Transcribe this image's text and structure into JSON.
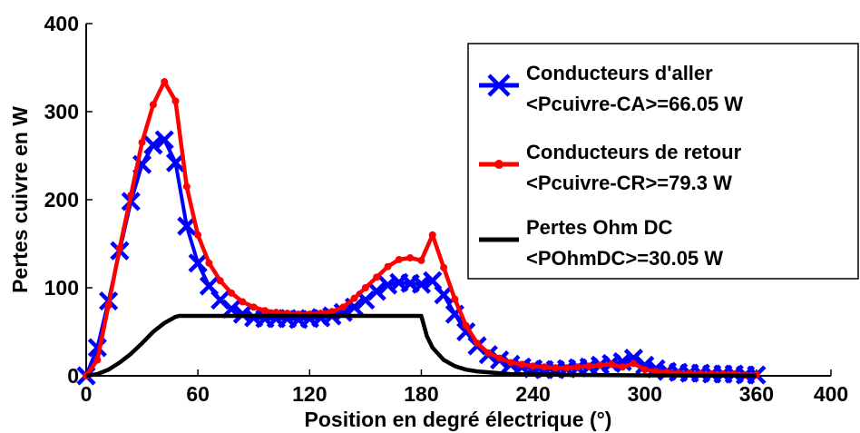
{
  "chart_data": {
    "type": "line",
    "title": "",
    "xlabel": "Position en degré électrique (°)",
    "ylabel": "Pertes cuivre en W",
    "xlim": [
      0,
      400
    ],
    "ylim": [
      0,
      400
    ],
    "xticks": [
      "0",
      "60",
      "120",
      "180",
      "240",
      "300",
      "360",
      "400"
    ],
    "yticks": [
      "0",
      "100",
      "200",
      "300",
      "400"
    ],
    "grid": false,
    "legend_position": "top-right",
    "series": [
      {
        "name": "Conducteurs d'aller",
        "sub": "<Pcuivre-CA>=66.05 W",
        "color": "#0000ff",
        "marker": "x",
        "x": [
          0,
          6,
          12,
          18,
          24,
          30,
          36,
          42,
          48,
          54,
          60,
          66,
          72,
          78,
          84,
          90,
          96,
          102,
          108,
          114,
          120,
          126,
          132,
          138,
          144,
          150,
          156,
          162,
          168,
          174,
          180,
          186,
          192,
          198,
          204,
          210,
          216,
          222,
          228,
          234,
          240,
          246,
          252,
          258,
          264,
          270,
          276,
          282,
          288,
          294,
          300,
          306,
          312,
          318,
          324,
          330,
          336,
          342,
          348,
          354,
          360
        ],
        "y": [
          0,
          32,
          85,
          142,
          198,
          240,
          262,
          268,
          242,
          170,
          128,
          102,
          86,
          76,
          70,
          66,
          65,
          65,
          65,
          64,
          65,
          66,
          68,
          72,
          78,
          86,
          96,
          103,
          106,
          105,
          104,
          108,
          92,
          70,
          50,
          34,
          24,
          18,
          13,
          10,
          8,
          7,
          7,
          8,
          9,
          10,
          12,
          14,
          16,
          20,
          12,
          8,
          5,
          4,
          3,
          3,
          2,
          2,
          2,
          1,
          1
        ]
      },
      {
        "name": "Conducteurs de retour",
        "sub": "<Pcuivre-CR>=79.3 W",
        "color": "#ff0000",
        "marker": "dot",
        "x": [
          0,
          6,
          12,
          18,
          24,
          30,
          36,
          42,
          48,
          54,
          60,
          66,
          72,
          78,
          84,
          90,
          96,
          102,
          108,
          114,
          120,
          126,
          132,
          138,
          144,
          150,
          156,
          162,
          168,
          174,
          180,
          186,
          192,
          198,
          204,
          210,
          216,
          222,
          228,
          234,
          240,
          246,
          252,
          258,
          264,
          270,
          276,
          282,
          288,
          294,
          300,
          306,
          312,
          318,
          324,
          330,
          336,
          342,
          348,
          354,
          360
        ],
        "y": [
          0,
          18,
          80,
          145,
          205,
          265,
          308,
          334,
          312,
          215,
          160,
          128,
          108,
          94,
          84,
          78,
          74,
          72,
          71,
          70,
          70,
          71,
          73,
          78,
          88,
          100,
          112,
          124,
          132,
          134,
          131,
          160,
          123,
          87,
          57,
          37,
          26,
          20,
          15,
          13,
          11,
          10,
          9,
          9,
          10,
          11,
          12,
          13,
          10,
          14,
          7,
          5,
          4,
          3,
          3,
          2,
          2,
          2,
          2,
          1,
          1
        ]
      },
      {
        "name": "Pertes Ohm DC",
        "sub": "<POhmDC>=30.05 W",
        "color": "#000000",
        "marker": "none",
        "x": [
          0,
          6,
          12,
          18,
          24,
          30,
          36,
          42,
          48,
          50,
          60,
          90,
          120,
          150,
          175,
          180,
          183,
          186,
          192,
          198,
          204,
          210,
          216,
          222,
          228,
          240,
          260,
          280,
          300,
          330,
          360
        ],
        "y": [
          0,
          2,
          7,
          15,
          25,
          37,
          50,
          60,
          67,
          68,
          68,
          68,
          68,
          68,
          68,
          68,
          45,
          32,
          18,
          11,
          7,
          5,
          4,
          3,
          2,
          1.5,
          1,
          0.8,
          0.5,
          0.3,
          0.2
        ]
      }
    ]
  }
}
